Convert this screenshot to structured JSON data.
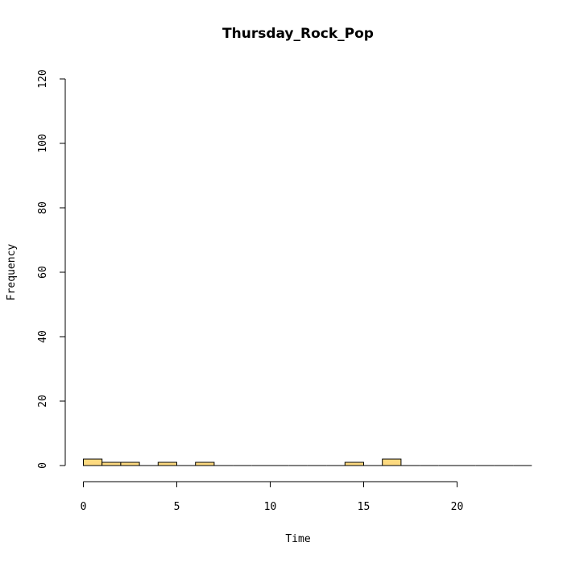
{
  "chart_data": {
    "type": "bar",
    "title": "Thursday_Rock_Pop",
    "xlabel": "Time",
    "ylabel": "Frequency",
    "xlim": [
      0,
      24
    ],
    "ylim": [
      0,
      120
    ],
    "x_ticks": [
      0,
      5,
      10,
      15,
      20
    ],
    "y_ticks": [
      0,
      20,
      40,
      60,
      80,
      100,
      120
    ],
    "bin_width": 1,
    "bins": [
      {
        "start": 0,
        "end": 1,
        "count": 2
      },
      {
        "start": 1,
        "end": 2,
        "count": 1
      },
      {
        "start": 2,
        "end": 3,
        "count": 1
      },
      {
        "start": 3,
        "end": 4,
        "count": 0
      },
      {
        "start": 4,
        "end": 5,
        "count": 1
      },
      {
        "start": 5,
        "end": 6,
        "count": 0
      },
      {
        "start": 6,
        "end": 7,
        "count": 1
      },
      {
        "start": 7,
        "end": 8,
        "count": 0
      },
      {
        "start": 8,
        "end": 9,
        "count": 0
      },
      {
        "start": 9,
        "end": 10,
        "count": 0
      },
      {
        "start": 10,
        "end": 11,
        "count": 0
      },
      {
        "start": 11,
        "end": 12,
        "count": 0
      },
      {
        "start": 12,
        "end": 13,
        "count": 0
      },
      {
        "start": 13,
        "end": 14,
        "count": 0
      },
      {
        "start": 14,
        "end": 15,
        "count": 1
      },
      {
        "start": 15,
        "end": 16,
        "count": 0
      },
      {
        "start": 16,
        "end": 17,
        "count": 2
      },
      {
        "start": 17,
        "end": 18,
        "count": 0
      },
      {
        "start": 18,
        "end": 19,
        "count": 0
      },
      {
        "start": 19,
        "end": 20,
        "count": 0
      },
      {
        "start": 20,
        "end": 21,
        "count": 0
      },
      {
        "start": 21,
        "end": 22,
        "count": 0
      },
      {
        "start": 22,
        "end": 23,
        "count": 0
      },
      {
        "start": 23,
        "end": 24,
        "count": 0
      }
    ],
    "bar_color": "#fdda80",
    "bar_edge_color": "#000000",
    "grid": false
  }
}
